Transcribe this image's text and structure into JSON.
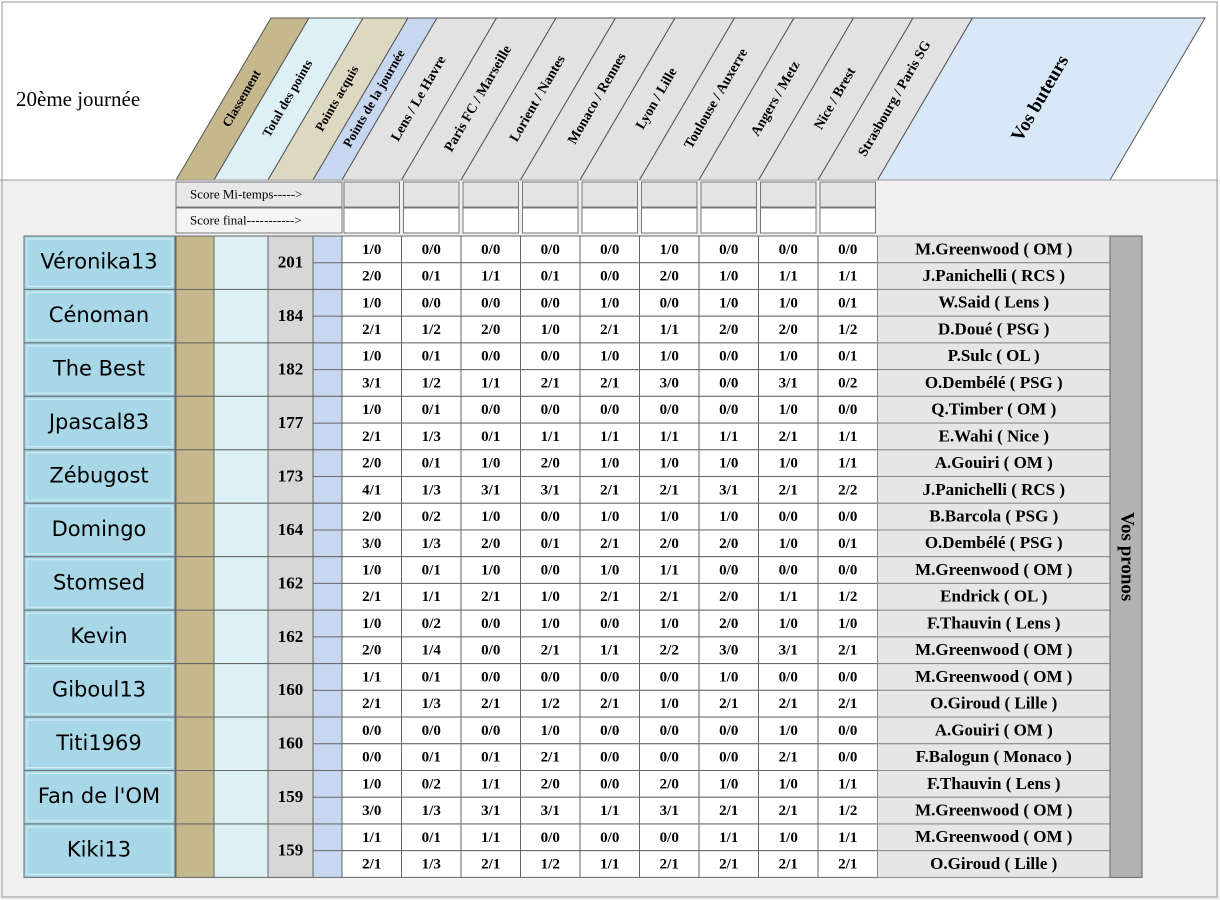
{
  "title": "20ème journée",
  "columns": [
    "Classement",
    "Total des points",
    "Points acquis",
    "Points de la journée"
  ],
  "matches": [
    "Lens / Le Havre",
    "Paris FC / Marseille",
    "Lorient / Nantes",
    "Monaco / Rennes",
    "Lyon / Lille",
    "Toulouse / Auxerre",
    "Angers / Metz",
    "Nice / Brest",
    "Strasbourg / Paris SG"
  ],
  "scorers_header": "Vos buteurs",
  "row_labels": [
    "Score Mi-temps----->",
    "Score final----------->"
  ],
  "side_label": "Vos pronos",
  "players": [
    {
      "name": "Véronika13",
      "total": 201,
      "half": [
        "1/0",
        "0/0",
        "0/0",
        "0/0",
        "0/0",
        "1/0",
        "0/0",
        "0/0",
        "0/0"
      ],
      "final": [
        "2/0",
        "0/1",
        "1/1",
        "0/1",
        "0/0",
        "2/0",
        "1/0",
        "1/1",
        "1/1"
      ],
      "scorers": [
        "M.Greenwood ( OM )",
        "J.Panichelli ( RCS )"
      ]
    },
    {
      "name": "Cénoman",
      "total": 184,
      "half": [
        "1/0",
        "0/0",
        "0/0",
        "0/0",
        "1/0",
        "0/0",
        "1/0",
        "1/0",
        "0/1"
      ],
      "final": [
        "2/1",
        "1/2",
        "2/0",
        "1/0",
        "2/1",
        "1/1",
        "2/0",
        "2/0",
        "1/2"
      ],
      "scorers": [
        "W.Said ( Lens )",
        "D.Doué ( PSG )"
      ]
    },
    {
      "name": "The Best",
      "total": 182,
      "half": [
        "1/0",
        "0/1",
        "0/0",
        "0/0",
        "1/0",
        "1/0",
        "0/0",
        "1/0",
        "0/1"
      ],
      "final": [
        "3/1",
        "1/2",
        "1/1",
        "2/1",
        "2/1",
        "3/0",
        "0/0",
        "3/1",
        "0/2"
      ],
      "scorers": [
        "P.Sulc ( OL )",
        "O.Dembélé ( PSG )"
      ]
    },
    {
      "name": "Jpascal83",
      "total": 177,
      "half": [
        "1/0",
        "0/1",
        "0/0",
        "0/0",
        "0/0",
        "0/0",
        "0/0",
        "1/0",
        "0/0"
      ],
      "final": [
        "2/1",
        "1/3",
        "0/1",
        "1/1",
        "1/1",
        "1/1",
        "1/1",
        "2/1",
        "1/1"
      ],
      "scorers": [
        "Q.Timber ( OM )",
        "E.Wahi ( Nice )"
      ]
    },
    {
      "name": "Zébugost",
      "total": 173,
      "half": [
        "2/0",
        "0/1",
        "1/0",
        "2/0",
        "1/0",
        "1/0",
        "1/0",
        "1/0",
        "1/1"
      ],
      "final": [
        "4/1",
        "1/3",
        "3/1",
        "3/1",
        "2/1",
        "2/1",
        "3/1",
        "2/1",
        "2/2"
      ],
      "scorers": [
        "A.Gouiri ( OM )",
        "J.Panichelli ( RCS )"
      ]
    },
    {
      "name": "Domingo",
      "total": 164,
      "half": [
        "2/0",
        "0/2",
        "1/0",
        "0/0",
        "1/0",
        "1/0",
        "1/0",
        "0/0",
        "0/0"
      ],
      "final": [
        "3/0",
        "1/3",
        "2/0",
        "0/1",
        "2/1",
        "2/0",
        "2/0",
        "1/0",
        "0/1"
      ],
      "scorers": [
        "B.Barcola ( PSG )",
        "O.Dembélé ( PSG )"
      ]
    },
    {
      "name": "Stomsed",
      "total": 162,
      "half": [
        "1/0",
        "0/1",
        "1/0",
        "0/0",
        "1/0",
        "1/1",
        "0/0",
        "0/0",
        "0/0"
      ],
      "final": [
        "2/1",
        "1/1",
        "2/1",
        "1/0",
        "2/1",
        "2/1",
        "2/0",
        "1/1",
        "1/2"
      ],
      "scorers": [
        "M.Greenwood ( OM )",
        "Endrick ( OL )"
      ]
    },
    {
      "name": "Kevin",
      "total": 162,
      "half": [
        "1/0",
        "0/2",
        "0/0",
        "1/0",
        "0/0",
        "1/0",
        "2/0",
        "1/0",
        "1/0"
      ],
      "final": [
        "2/0",
        "1/4",
        "0/0",
        "2/1",
        "1/1",
        "2/2",
        "3/0",
        "3/1",
        "2/1"
      ],
      "scorers": [
        "F.Thauvin ( Lens )",
        "M.Greenwood ( OM )"
      ]
    },
    {
      "name": "Giboul13",
      "total": 160,
      "half": [
        "1/1",
        "0/1",
        "0/0",
        "0/0",
        "0/0",
        "0/0",
        "1/0",
        "0/0",
        "0/0"
      ],
      "final": [
        "2/1",
        "1/3",
        "2/1",
        "1/2",
        "2/1",
        "1/0",
        "2/1",
        "2/1",
        "2/1"
      ],
      "scorers": [
        "M.Greenwood ( OM )",
        "O.Giroud ( Lille )"
      ]
    },
    {
      "name": "Titi1969",
      "total": 160,
      "half": [
        "0/0",
        "0/0",
        "0/0",
        "1/0",
        "0/0",
        "0/0",
        "0/0",
        "1/0",
        "0/0"
      ],
      "final": [
        "0/0",
        "0/1",
        "0/1",
        "2/1",
        "0/0",
        "0/0",
        "0/0",
        "2/1",
        "0/0"
      ],
      "scorers": [
        "A.Gouiri ( OM )",
        "F.Balogun ( Monaco )"
      ]
    },
    {
      "name": "Fan de l'OM",
      "total": 159,
      "half": [
        "1/0",
        "0/2",
        "1/1",
        "2/0",
        "0/0",
        "2/0",
        "1/0",
        "1/0",
        "1/1"
      ],
      "final": [
        "3/0",
        "1/3",
        "3/1",
        "3/1",
        "1/1",
        "3/1",
        "2/1",
        "2/1",
        "1/2"
      ],
      "scorers": [
        "F.Thauvin ( Lens )",
        "M.Greenwood ( OM )"
      ]
    },
    {
      "name": "Kiki13",
      "total": 159,
      "half": [
        "1/1",
        "0/1",
        "1/1",
        "0/0",
        "0/0",
        "0/0",
        "1/1",
        "1/0",
        "1/1"
      ],
      "final": [
        "2/1",
        "1/3",
        "2/1",
        "1/2",
        "1/1",
        "2/1",
        "2/1",
        "2/1",
        "2/1"
      ],
      "scorers": [
        "M.Greenwood ( OM )",
        "O.Giroud ( Lille )"
      ]
    }
  ]
}
